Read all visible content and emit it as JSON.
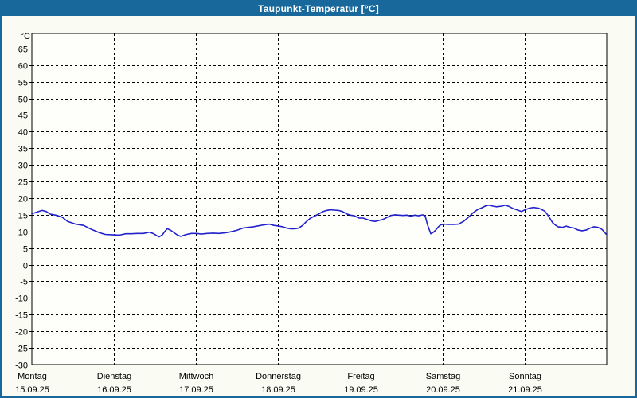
{
  "window": {
    "title": "Taupunkt-Temperatur [°C]"
  },
  "colors": {
    "titlebar_bg": "#19689B",
    "titlebar_text": "#FFFFFF",
    "window_border": "#19689B",
    "background": "#FAFCF4",
    "plot_background": "#FEFFFB",
    "plot_border": "#000000",
    "gridline": "#000000",
    "label_text": "#000000",
    "series_line": "#2222CC"
  },
  "chart_data": {
    "type": "line",
    "title": "Taupunkt-Temperatur [°C]",
    "y_unit_label": "°C",
    "ylim": [
      -30,
      69.5
    ],
    "yticks": [
      65,
      60,
      55,
      50,
      45,
      40,
      35,
      30,
      25,
      20,
      15,
      10,
      5,
      0,
      -5,
      -10,
      -15,
      -20,
      -25,
      -30
    ],
    "grid": "dashed",
    "legend": "none",
    "x_axis": {
      "unit": "days_from_monday",
      "range_days": [
        0,
        7
      ],
      "days": [
        {
          "name": "Montag",
          "date": "15.09.25"
        },
        {
          "name": "Dienstag",
          "date": "16.09.25"
        },
        {
          "name": "Mittwoch",
          "date": "17.09.25"
        },
        {
          "name": "Donnerstag",
          "date": "18.09.25"
        },
        {
          "name": "Freitag",
          "date": "19.09.25"
        },
        {
          "name": "Samstag",
          "date": "20.09.25"
        },
        {
          "name": "Sonntag",
          "date": "21.09.25"
        }
      ]
    },
    "series": [
      {
        "name": "Taupunkt-Temperatur",
        "color": "#2222CC",
        "points": [
          [
            0,
            15.3
          ],
          [
            0.048,
            15.7
          ],
          [
            0.097,
            16.1
          ],
          [
            0.126,
            16.3
          ],
          [
            0.175,
            16
          ],
          [
            0.223,
            15.2
          ],
          [
            0.291,
            14.9
          ],
          [
            0.368,
            14.3
          ],
          [
            0.436,
            13
          ],
          [
            0.533,
            12.2
          ],
          [
            0.63,
            11.8
          ],
          [
            0.727,
            10.6
          ],
          [
            0.824,
            9.6
          ],
          [
            0.892,
            9.1
          ],
          [
            0.97,
            9
          ],
          [
            1.066,
            8.9
          ],
          [
            1.144,
            9.3
          ],
          [
            1.212,
            9.3
          ],
          [
            1.28,
            9.4
          ],
          [
            1.357,
            9.4
          ],
          [
            1.435,
            9.8
          ],
          [
            1.483,
            9.3
          ],
          [
            1.522,
            8.7
          ],
          [
            1.551,
            8.4
          ],
          [
            1.59,
            9
          ],
          [
            1.619,
            10
          ],
          [
            1.648,
            10.8
          ],
          [
            1.687,
            10.4
          ],
          [
            1.726,
            9.7
          ],
          [
            1.774,
            8.9
          ],
          [
            1.813,
            8.5
          ],
          [
            1.871,
            9
          ],
          [
            1.939,
            9.4
          ],
          [
            2.007,
            9.4
          ],
          [
            2.065,
            9.2
          ],
          [
            2.133,
            9.4
          ],
          [
            2.21,
            9.5
          ],
          [
            2.278,
            9.4
          ],
          [
            2.356,
            9.6
          ],
          [
            2.424,
            9.9
          ],
          [
            2.492,
            10.3
          ],
          [
            2.569,
            11
          ],
          [
            2.637,
            11.2
          ],
          [
            2.695,
            11.4
          ],
          [
            2.763,
            11.7
          ],
          [
            2.831,
            12
          ],
          [
            2.889,
            12.2
          ],
          [
            2.947,
            11.8
          ],
          [
            3.006,
            11.6
          ],
          [
            3.054,
            11.4
          ],
          [
            3.103,
            11
          ],
          [
            3.151,
            10.8
          ],
          [
            3.2,
            10.8
          ],
          [
            3.248,
            11
          ],
          [
            3.297,
            11.8
          ],
          [
            3.345,
            13
          ],
          [
            3.393,
            14
          ],
          [
            3.442,
            14.6
          ],
          [
            3.49,
            15.2
          ],
          [
            3.539,
            15.9
          ],
          [
            3.587,
            16.3
          ],
          [
            3.636,
            16.5
          ],
          [
            3.684,
            16.4
          ],
          [
            3.733,
            16.3
          ],
          [
            3.781,
            16
          ],
          [
            3.83,
            15.3
          ],
          [
            3.878,
            14.9
          ],
          [
            3.927,
            14.7
          ],
          [
            3.985,
            14
          ],
          [
            4.033,
            14
          ],
          [
            4.082,
            13.6
          ],
          [
            4.13,
            13.2
          ],
          [
            4.179,
            13
          ],
          [
            4.227,
            13.3
          ],
          [
            4.276,
            13.6
          ],
          [
            4.324,
            14.2
          ],
          [
            4.373,
            14.8
          ],
          [
            4.421,
            15
          ],
          [
            4.469,
            14.9
          ],
          [
            4.518,
            14.8
          ],
          [
            4.566,
            14.9
          ],
          [
            4.615,
            14.6
          ],
          [
            4.663,
            14.9
          ],
          [
            4.712,
            14.7
          ],
          [
            4.76,
            15
          ],
          [
            4.789,
            14.6
          ],
          [
            4.818,
            12
          ],
          [
            4.857,
            9.3
          ],
          [
            4.886,
            9.7
          ],
          [
            4.915,
            10.3
          ],
          [
            4.944,
            11.2
          ],
          [
            4.973,
            11.9
          ],
          [
            5.012,
            12.2
          ],
          [
            5.071,
            12.1
          ],
          [
            5.138,
            12.1
          ],
          [
            5.197,
            12.2
          ],
          [
            5.255,
            13
          ],
          [
            5.313,
            14.2
          ],
          [
            5.371,
            15.6
          ],
          [
            5.43,
            16.6
          ],
          [
            5.478,
            17.1
          ],
          [
            5.527,
            17.7
          ],
          [
            5.565,
            17.9
          ],
          [
            5.614,
            17.6
          ],
          [
            5.662,
            17.4
          ],
          [
            5.721,
            17.6
          ],
          [
            5.769,
            17.9
          ],
          [
            5.818,
            17.4
          ],
          [
            5.866,
            16.8
          ],
          [
            5.915,
            16.4
          ],
          [
            5.963,
            16
          ],
          [
            6.012,
            16.6
          ],
          [
            6.06,
            17
          ],
          [
            6.109,
            17.2
          ],
          [
            6.167,
            17
          ],
          [
            6.206,
            16.6
          ],
          [
            6.245,
            16.1
          ],
          [
            6.283,
            14.9
          ],
          [
            6.312,
            13.8
          ],
          [
            6.342,
            12.6
          ],
          [
            6.38,
            11.8
          ],
          [
            6.409,
            11.4
          ],
          [
            6.458,
            11.2
          ],
          [
            6.506,
            11.6
          ],
          [
            6.555,
            11.2
          ],
          [
            6.603,
            11
          ],
          [
            6.652,
            10.4
          ],
          [
            6.7,
            10.2
          ],
          [
            6.749,
            10.4
          ],
          [
            6.797,
            11
          ],
          [
            6.846,
            11.4
          ],
          [
            6.894,
            11.2
          ],
          [
            6.943,
            10.6
          ],
          [
            6.972,
            9.8
          ],
          [
            6.991,
            9.2
          ]
        ]
      }
    ]
  }
}
